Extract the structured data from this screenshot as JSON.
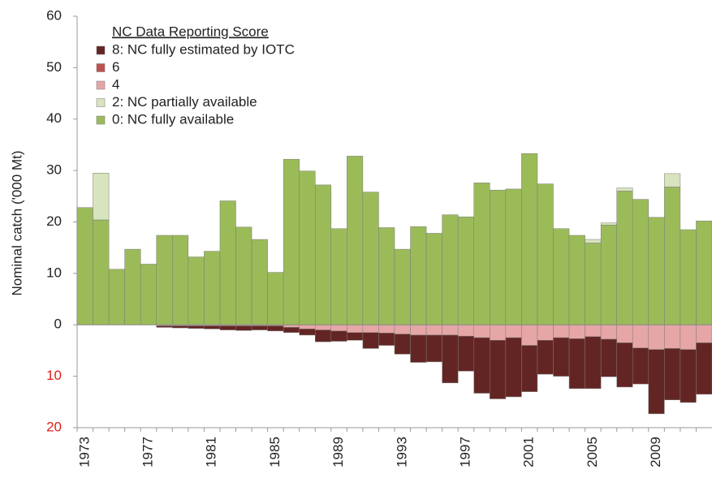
{
  "chart_data": {
    "type": "bar",
    "stacked": true,
    "y_label": "Nominal catch ('000 Mt)",
    "legend_title": "NC Data Reporting Score",
    "legend": "top-left",
    "categories": [
      "1973",
      null,
      null,
      null,
      "1977",
      null,
      null,
      null,
      "1981",
      null,
      null,
      null,
      "1985",
      null,
      null,
      null,
      "1989",
      null,
      null,
      null,
      "1993",
      null,
      null,
      null,
      "1997",
      null,
      null,
      null,
      "2001",
      null,
      null,
      null,
      "2005",
      null,
      null,
      null,
      "2009",
      null,
      null,
      null
    ],
    "ylim": [
      -20,
      60
    ],
    "yticks": [
      {
        "value": -20,
        "label": "20"
      },
      {
        "value": -10,
        "label": "10"
      },
      0,
      10,
      20,
      30,
      40,
      50,
      60
    ],
    "series": [
      {
        "name": "8: NC fully estimated by IOTC",
        "color": "#632523",
        "values": [
          0,
          0,
          0,
          0,
          0,
          -0.3,
          -0.4,
          -0.5,
          -0.6,
          -0.8,
          -0.9,
          -0.8,
          -1.0,
          -1.0,
          -1.2,
          -2.3,
          -2.0,
          -1.5,
          -3.1,
          -2.4,
          -3.9,
          -5.3,
          -5.2,
          -9.3,
          -6.8,
          -10.8,
          -11.4,
          -11.5,
          -9.0,
          -6.6,
          -7.5,
          -9.7,
          -10.1,
          -7.3,
          -8.6,
          -7.0,
          -12.5,
          -10.0,
          -10.3,
          -10.0
        ]
      },
      {
        "name": "6",
        "color": "#c0504d",
        "values": [
          0,
          0,
          0,
          0,
          0,
          0,
          0,
          0,
          0,
          0,
          0,
          0,
          0,
          0,
          0,
          0,
          0,
          0,
          0,
          0,
          0,
          0,
          0,
          0,
          0,
          0,
          0,
          0,
          0,
          0,
          0,
          0,
          0,
          0,
          0,
          0,
          0,
          0,
          0,
          0
        ]
      },
      {
        "name": "4",
        "color": "#e6a6a6",
        "values": [
          0,
          0,
          0,
          0,
          0,
          -0.2,
          -0.2,
          -0.2,
          -0.2,
          -0.2,
          -0.2,
          -0.2,
          -0.2,
          -0.5,
          -0.8,
          -1.0,
          -1.2,
          -1.5,
          -1.5,
          -1.6,
          -1.8,
          -2.0,
          -2.0,
          -2.0,
          -2.2,
          -2.5,
          -3.0,
          -2.5,
          -4.0,
          -3.0,
          -2.5,
          -2.7,
          -2.3,
          -2.8,
          -3.5,
          -4.5,
          -4.8,
          -4.6,
          -4.8,
          -3.5
        ]
      },
      {
        "name": "2: NC partially available",
        "color": "#d7e4bd",
        "values": [
          0,
          9.1,
          0,
          0,
          0,
          0,
          0,
          0,
          0,
          0,
          0,
          0,
          0,
          0,
          0,
          0,
          0,
          0,
          0,
          0,
          0,
          0,
          0,
          0,
          0,
          0,
          0,
          0,
          0,
          0,
          0,
          0,
          0.7,
          0.4,
          0.6,
          0,
          0,
          2.6,
          0,
          0
        ]
      },
      {
        "name": "0: NC fully available",
        "color": "#9bbb59",
        "values": [
          22.8,
          20.4,
          10.8,
          14.7,
          11.8,
          17.4,
          17.4,
          13.2,
          14.3,
          24.1,
          19.0,
          16.6,
          10.2,
          32.2,
          29.9,
          27.2,
          18.7,
          32.8,
          25.8,
          18.9,
          14.7,
          19.1,
          17.8,
          21.4,
          21.0,
          27.6,
          26.2,
          26.4,
          33.3,
          27.4,
          18.7,
          17.4,
          15.9,
          19.4,
          26.0,
          24.4,
          20.9,
          26.8,
          18.5,
          20.2
        ]
      }
    ]
  }
}
